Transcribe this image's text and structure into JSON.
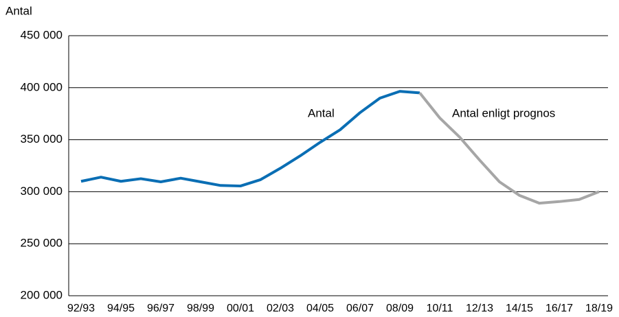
{
  "chart_data": {
    "type": "line",
    "y_axis_label": "Antal",
    "categories": [
      "92/93",
      null,
      "94/95",
      null,
      "96/97",
      null,
      "98/99",
      null,
      "00/01",
      null,
      "02/03",
      null,
      "04/05",
      null,
      "06/07",
      null,
      "08/09",
      null,
      "10/11",
      null,
      "12/13",
      null,
      "14/15",
      null,
      "16/17",
      null,
      "18/19"
    ],
    "series": [
      {
        "name": "Antal",
        "color": "#0a6eb4",
        "values": [
          310000,
          314000,
          310000,
          312500,
          309500,
          313000,
          309500,
          306000,
          305500,
          311500,
          322500,
          334500,
          347500,
          359500,
          376000,
          390000,
          396500,
          395000,
          null,
          null,
          null,
          null,
          null,
          null,
          null,
          null,
          null
        ]
      },
      {
        "name": "Antal enligt prognos",
        "color": "#a6a6a6",
        "values": [
          null,
          null,
          null,
          null,
          null,
          null,
          null,
          null,
          null,
          null,
          null,
          null,
          null,
          null,
          null,
          null,
          null,
          395000,
          371000,
          352500,
          330500,
          309500,
          296500,
          289000,
          290500,
          292500,
          300000
        ]
      }
    ],
    "ylim": [
      200000,
      450000
    ],
    "yticks": [
      {
        "value": 200000,
        "label": "200 000"
      },
      {
        "value": 250000,
        "label": "250 000"
      },
      {
        "value": 300000,
        "label": "300 000"
      },
      {
        "value": 350000,
        "label": "350 000"
      },
      {
        "value": 400000,
        "label": "400 000"
      },
      {
        "value": 450000,
        "label": "450 000"
      }
    ],
    "grid": true
  }
}
